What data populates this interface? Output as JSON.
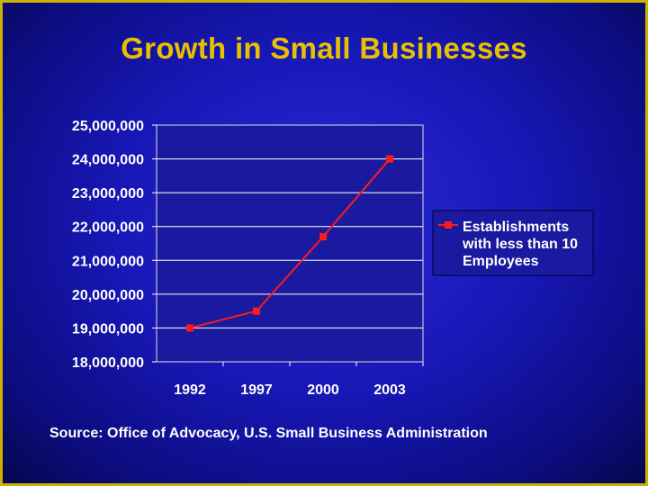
{
  "slide": {
    "title": "Growth in Small Businesses",
    "source": "Source: Office of Advocacy, U.S. Small Business Administration"
  },
  "colors": {
    "title": "#e8c000",
    "series": "#ff1a1a",
    "plot_background": "#1a1aa0",
    "grid": "#ffffff",
    "border": "#c8b400"
  },
  "chart_data": {
    "type": "line",
    "title": "Growth in Small Businesses",
    "xlabel": "",
    "ylabel": "",
    "categories": [
      "1992",
      "1997",
      "2000",
      "2003"
    ],
    "series": [
      {
        "name": "Establishments with less than 10 Employees",
        "values": [
          19000000,
          19500000,
          21700000,
          24000000
        ]
      }
    ],
    "ylim": [
      18000000,
      25000000
    ],
    "yticks": [
      25000000,
      24000000,
      23000000,
      22000000,
      21000000,
      20000000,
      19000000,
      18000000
    ],
    "ytick_labels": [
      "25,000,000",
      "24,000,000",
      "23,000,000",
      "22,000,000",
      "21,000,000",
      "20,000,000",
      "19,000,000",
      "18,000,000"
    ],
    "grid": true,
    "legend": {
      "position": "right",
      "lines": [
        "Establishments",
        "with less than 10",
        "Employees"
      ]
    }
  }
}
